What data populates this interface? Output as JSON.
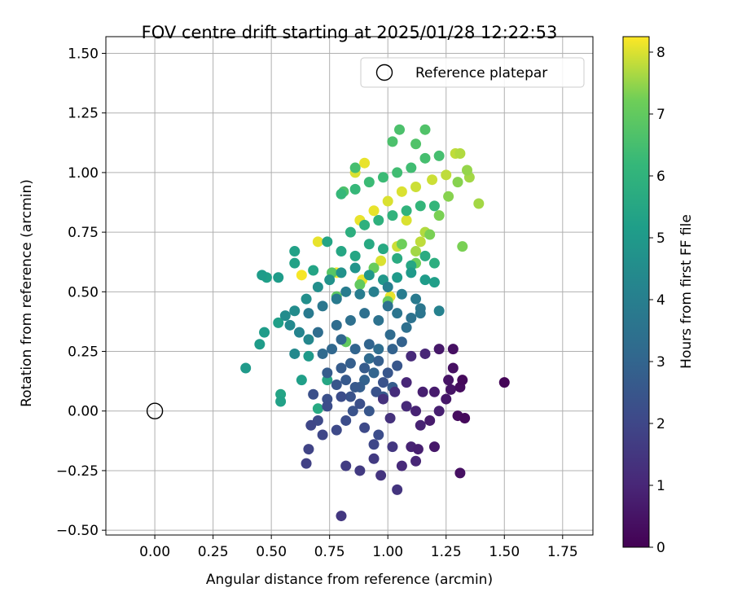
{
  "chart_data": {
    "type": "scatter",
    "title": "FOV centre drift starting at 2025/01/28 12:22:53",
    "xlabel": "Angular distance from reference (arcmin)",
    "ylabel": "Rotation from reference (arcmin)",
    "xlim": [
      -0.21,
      1.88
    ],
    "ylim": [
      -0.52,
      1.57
    ],
    "xticks": [
      0.0,
      0.25,
      0.5,
      0.75,
      1.0,
      1.25,
      1.5,
      1.75
    ],
    "xtick_labels": [
      "0.00",
      "0.25",
      "0.50",
      "0.75",
      "1.00",
      "1.25",
      "1.50",
      "1.75"
    ],
    "yticks": [
      -0.5,
      -0.25,
      0.0,
      0.25,
      0.5,
      0.75,
      1.0,
      1.25,
      1.5
    ],
    "ytick_labels": [
      "−0.50",
      "−0.25",
      "0.00",
      "0.25",
      "0.50",
      "0.75",
      "1.00",
      "1.25",
      "1.50"
    ],
    "grid": true,
    "legend": {
      "placement": "top-right",
      "entries": [
        {
          "label": "Reference platepar",
          "marker": "hollow-circle"
        }
      ]
    },
    "reference_point": {
      "x": 0.0,
      "y": 0.0
    },
    "colorbar": {
      "label": "Hours from first FF file",
      "colormap": "viridis",
      "range": [
        0,
        8.25
      ],
      "ticks": [
        0,
        1,
        2,
        3,
        4,
        5,
        6,
        7,
        8
      ],
      "tick_labels": [
        "0",
        "1",
        "2",
        "3",
        "4",
        "5",
        "6",
        "7",
        "8"
      ]
    },
    "points": [
      {
        "x": 1.5,
        "y": 0.12,
        "c": 0.1
      },
      {
        "x": 1.32,
        "y": 0.13,
        "c": 0.2
      },
      {
        "x": 1.31,
        "y": 0.1,
        "c": 0.3
      },
      {
        "x": 1.33,
        "y": -0.03,
        "c": 0.2
      },
      {
        "x": 1.3,
        "y": -0.02,
        "c": 0.3
      },
      {
        "x": 1.28,
        "y": 0.26,
        "c": 0.4
      },
      {
        "x": 1.28,
        "y": 0.18,
        "c": 0.4
      },
      {
        "x": 1.26,
        "y": 0.13,
        "c": 0.5
      },
      {
        "x": 1.27,
        "y": 0.09,
        "c": 0.5
      },
      {
        "x": 1.25,
        "y": 0.05,
        "c": 0.6
      },
      {
        "x": 1.31,
        "y": -0.26,
        "c": 0.4
      },
      {
        "x": 1.22,
        "y": 0.26,
        "c": 0.6
      },
      {
        "x": 1.2,
        "y": 0.08,
        "c": 0.7
      },
      {
        "x": 1.18,
        "y": -0.04,
        "c": 0.7
      },
      {
        "x": 1.15,
        "y": 0.08,
        "c": 0.8
      },
      {
        "x": 1.14,
        "y": -0.06,
        "c": 0.9
      },
      {
        "x": 1.12,
        "y": 0.0,
        "c": 0.9
      },
      {
        "x": 1.2,
        "y": -0.15,
        "c": 0.6
      },
      {
        "x": 1.13,
        "y": -0.16,
        "c": 0.8
      },
      {
        "x": 1.1,
        "y": -0.15,
        "c": 0.9
      },
      {
        "x": 1.08,
        "y": 0.12,
        "c": 1.0
      },
      {
        "x": 1.06,
        "y": -0.23,
        "c": 1.1
      },
      {
        "x": 1.12,
        "y": -0.21,
        "c": 1.0
      },
      {
        "x": 1.22,
        "y": 0.0,
        "c": 0.8
      },
      {
        "x": 1.08,
        "y": 0.02,
        "c": 1.1
      },
      {
        "x": 1.03,
        "y": 0.08,
        "c": 1.2
      },
      {
        "x": 1.01,
        "y": -0.03,
        "c": 1.3
      },
      {
        "x": 0.98,
        "y": 0.05,
        "c": 1.3
      },
      {
        "x": 0.97,
        "y": -0.27,
        "c": 1.4
      },
      {
        "x": 1.04,
        "y": -0.33,
        "c": 1.4
      },
      {
        "x": 1.16,
        "y": 0.24,
        "c": 1.0
      },
      {
        "x": 1.1,
        "y": 0.23,
        "c": 1.1
      },
      {
        "x": 1.02,
        "y": -0.15,
        "c": 1.5
      },
      {
        "x": 0.94,
        "y": -0.2,
        "c": 1.6
      },
      {
        "x": 0.88,
        "y": -0.25,
        "c": 1.6
      },
      {
        "x": 0.82,
        "y": -0.23,
        "c": 1.7
      },
      {
        "x": 0.8,
        "y": -0.44,
        "c": 1.5
      },
      {
        "x": 0.65,
        "y": -0.22,
        "c": 1.8
      },
      {
        "x": 0.66,
        "y": -0.16,
        "c": 1.9
      },
      {
        "x": 0.72,
        "y": -0.1,
        "c": 2.0
      },
      {
        "x": 0.67,
        "y": -0.06,
        "c": 2.0
      },
      {
        "x": 0.7,
        "y": -0.04,
        "c": 2.1
      },
      {
        "x": 0.78,
        "y": -0.08,
        "c": 2.1
      },
      {
        "x": 0.82,
        "y": -0.04,
        "c": 2.2
      },
      {
        "x": 0.9,
        "y": -0.07,
        "c": 2.1
      },
      {
        "x": 0.94,
        "y": -0.14,
        "c": 2.0
      },
      {
        "x": 0.96,
        "y": -0.1,
        "c": 2.2
      },
      {
        "x": 0.74,
        "y": 0.02,
        "c": 2.2
      },
      {
        "x": 0.68,
        "y": 0.07,
        "c": 2.3
      },
      {
        "x": 0.74,
        "y": 0.05,
        "c": 2.3
      },
      {
        "x": 0.8,
        "y": 0.06,
        "c": 2.2
      },
      {
        "x": 0.85,
        "y": 0.0,
        "c": 2.4
      },
      {
        "x": 0.88,
        "y": 0.03,
        "c": 2.3
      },
      {
        "x": 0.92,
        "y": 0.0,
        "c": 2.5
      },
      {
        "x": 0.95,
        "y": 0.08,
        "c": 2.4
      },
      {
        "x": 0.98,
        "y": 0.12,
        "c": 2.4
      },
      {
        "x": 1.0,
        "y": 0.16,
        "c": 2.5
      },
      {
        "x": 1.04,
        "y": 0.19,
        "c": 2.5
      },
      {
        "x": 0.86,
        "y": 0.1,
        "c": 2.6
      },
      {
        "x": 0.82,
        "y": 0.13,
        "c": 2.6
      },
      {
        "x": 0.78,
        "y": 0.11,
        "c": 2.5
      },
      {
        "x": 0.74,
        "y": 0.16,
        "c": 2.7
      },
      {
        "x": 0.8,
        "y": 0.18,
        "c": 2.7
      },
      {
        "x": 0.84,
        "y": 0.2,
        "c": 2.8
      },
      {
        "x": 0.9,
        "y": 0.18,
        "c": 2.7
      },
      {
        "x": 0.96,
        "y": 0.21,
        "c": 2.8
      },
      {
        "x": 1.02,
        "y": 0.26,
        "c": 2.9
      },
      {
        "x": 1.06,
        "y": 0.29,
        "c": 2.9
      },
      {
        "x": 0.92,
        "y": 0.28,
        "c": 3.0
      },
      {
        "x": 0.86,
        "y": 0.26,
        "c": 3.0
      },
      {
        "x": 0.8,
        "y": 0.3,
        "c": 3.1
      },
      {
        "x": 0.76,
        "y": 0.26,
        "c": 3.1
      },
      {
        "x": 0.72,
        "y": 0.24,
        "c": 3.2
      },
      {
        "x": 0.7,
        "y": 0.33,
        "c": 3.3
      },
      {
        "x": 0.78,
        "y": 0.36,
        "c": 3.3
      },
      {
        "x": 0.84,
        "y": 0.38,
        "c": 3.4
      },
      {
        "x": 0.9,
        "y": 0.41,
        "c": 3.4
      },
      {
        "x": 0.96,
        "y": 0.38,
        "c": 3.5
      },
      {
        "x": 1.0,
        "y": 0.44,
        "c": 3.5
      },
      {
        "x": 1.04,
        "y": 0.41,
        "c": 3.6
      },
      {
        "x": 1.1,
        "y": 0.39,
        "c": 3.5
      },
      {
        "x": 1.14,
        "y": 0.41,
        "c": 3.6
      },
      {
        "x": 1.08,
        "y": 0.35,
        "c": 3.4
      },
      {
        "x": 1.01,
        "y": 0.32,
        "c": 3.2
      },
      {
        "x": 0.66,
        "y": 0.41,
        "c": 3.8
      },
      {
        "x": 0.72,
        "y": 0.44,
        "c": 3.7
      },
      {
        "x": 0.78,
        "y": 0.47,
        "c": 3.8
      },
      {
        "x": 0.82,
        "y": 0.5,
        "c": 3.9
      },
      {
        "x": 0.88,
        "y": 0.49,
        "c": 3.9
      },
      {
        "x": 0.94,
        "y": 0.5,
        "c": 4.0
      },
      {
        "x": 1.0,
        "y": 0.52,
        "c": 4.0
      },
      {
        "x": 1.06,
        "y": 0.49,
        "c": 3.9
      },
      {
        "x": 1.12,
        "y": 0.47,
        "c": 3.8
      },
      {
        "x": 1.14,
        "y": 0.43,
        "c": 3.7
      },
      {
        "x": 1.22,
        "y": 0.42,
        "c": 4.1
      },
      {
        "x": 0.62,
        "y": 0.33,
        "c": 4.2
      },
      {
        "x": 0.66,
        "y": 0.3,
        "c": 4.3
      },
      {
        "x": 0.6,
        "y": 0.24,
        "c": 4.4
      },
      {
        "x": 0.58,
        "y": 0.36,
        "c": 4.4
      },
      {
        "x": 0.56,
        "y": 0.4,
        "c": 4.5
      },
      {
        "x": 0.6,
        "y": 0.42,
        "c": 4.5
      },
      {
        "x": 0.65,
        "y": 0.47,
        "c": 4.6
      },
      {
        "x": 0.7,
        "y": 0.52,
        "c": 4.6
      },
      {
        "x": 0.75,
        "y": 0.55,
        "c": 4.7
      },
      {
        "x": 0.8,
        "y": 0.58,
        "c": 4.7
      },
      {
        "x": 0.86,
        "y": 0.6,
        "c": 4.8
      },
      {
        "x": 0.92,
        "y": 0.57,
        "c": 4.9
      },
      {
        "x": 0.98,
        "y": 0.55,
        "c": 4.9
      },
      {
        "x": 1.04,
        "y": 0.56,
        "c": 5.0
      },
      {
        "x": 1.1,
        "y": 0.58,
        "c": 5.0
      },
      {
        "x": 1.16,
        "y": 0.55,
        "c": 5.1
      },
      {
        "x": 1.2,
        "y": 0.54,
        "c": 5.2
      },
      {
        "x": 0.46,
        "y": 0.57,
        "c": 5.1
      },
      {
        "x": 0.48,
        "y": 0.56,
        "c": 5.2
      },
      {
        "x": 0.53,
        "y": 0.56,
        "c": 5.1
      },
      {
        "x": 0.6,
        "y": 0.62,
        "c": 5.3
      },
      {
        "x": 0.6,
        "y": 0.67,
        "c": 5.3
      },
      {
        "x": 0.68,
        "y": 0.59,
        "c": 5.4
      },
      {
        "x": 0.74,
        "y": 0.71,
        "c": 5.4
      },
      {
        "x": 0.8,
        "y": 0.67,
        "c": 5.5
      },
      {
        "x": 0.86,
        "y": 0.65,
        "c": 5.5
      },
      {
        "x": 0.92,
        "y": 0.7,
        "c": 5.6
      },
      {
        "x": 0.98,
        "y": 0.68,
        "c": 5.6
      },
      {
        "x": 1.04,
        "y": 0.64,
        "c": 5.7
      },
      {
        "x": 1.1,
        "y": 0.61,
        "c": 5.5
      },
      {
        "x": 1.16,
        "y": 0.65,
        "c": 5.7
      },
      {
        "x": 1.2,
        "y": 0.62,
        "c": 5.8
      },
      {
        "x": 0.39,
        "y": 0.18,
        "c": 5.0
      },
      {
        "x": 0.45,
        "y": 0.28,
        "c": 5.1
      },
      {
        "x": 0.47,
        "y": 0.33,
        "c": 5.1
      },
      {
        "x": 0.53,
        "y": 0.37,
        "c": 5.2
      },
      {
        "x": 0.54,
        "y": 0.07,
        "c": 5.4
      },
      {
        "x": 0.54,
        "y": 0.04,
        "c": 5.3
      },
      {
        "x": 0.63,
        "y": 0.13,
        "c": 5.2
      },
      {
        "x": 0.66,
        "y": 0.23,
        "c": 5.0
      },
      {
        "x": 0.7,
        "y": 0.01,
        "c": 5.6
      },
      {
        "x": 0.74,
        "y": 0.13,
        "c": 5.5
      },
      {
        "x": 0.84,
        "y": 0.75,
        "c": 5.8
      },
      {
        "x": 0.9,
        "y": 0.78,
        "c": 5.9
      },
      {
        "x": 0.96,
        "y": 0.8,
        "c": 5.9
      },
      {
        "x": 1.02,
        "y": 0.82,
        "c": 6.0
      },
      {
        "x": 1.08,
        "y": 0.84,
        "c": 6.0
      },
      {
        "x": 1.14,
        "y": 0.86,
        "c": 6.1
      },
      {
        "x": 1.2,
        "y": 0.86,
        "c": 6.1
      },
      {
        "x": 0.8,
        "y": 0.91,
        "c": 6.2
      },
      {
        "x": 0.86,
        "y": 0.93,
        "c": 6.2
      },
      {
        "x": 0.92,
        "y": 0.96,
        "c": 6.3
      },
      {
        "x": 0.98,
        "y": 0.98,
        "c": 6.3
      },
      {
        "x": 1.04,
        "y": 1.0,
        "c": 6.4
      },
      {
        "x": 1.1,
        "y": 1.02,
        "c": 6.4
      },
      {
        "x": 1.16,
        "y": 1.06,
        "c": 6.5
      },
      {
        "x": 1.22,
        "y": 1.07,
        "c": 6.5
      },
      {
        "x": 1.05,
        "y": 1.18,
        "c": 6.6
      },
      {
        "x": 1.02,
        "y": 1.13,
        "c": 6.6
      },
      {
        "x": 1.12,
        "y": 1.12,
        "c": 6.7
      },
      {
        "x": 1.16,
        "y": 1.18,
        "c": 6.7
      },
      {
        "x": 0.86,
        "y": 1.02,
        "c": 6.5
      },
      {
        "x": 0.81,
        "y": 0.92,
        "c": 6.6
      },
      {
        "x": 0.76,
        "y": 0.58,
        "c": 6.8
      },
      {
        "x": 0.78,
        "y": 0.48,
        "c": 6.9
      },
      {
        "x": 0.82,
        "y": 0.29,
        "c": 7.0
      },
      {
        "x": 0.88,
        "y": 0.53,
        "c": 7.0
      },
      {
        "x": 0.94,
        "y": 0.6,
        "c": 7.1
      },
      {
        "x": 1.0,
        "y": 0.46,
        "c": 7.1
      },
      {
        "x": 1.06,
        "y": 0.7,
        "c": 7.2
      },
      {
        "x": 1.12,
        "y": 0.62,
        "c": 7.2
      },
      {
        "x": 1.18,
        "y": 0.74,
        "c": 7.3
      },
      {
        "x": 1.22,
        "y": 0.82,
        "c": 7.3
      },
      {
        "x": 1.26,
        "y": 0.9,
        "c": 7.4
      },
      {
        "x": 1.3,
        "y": 0.96,
        "c": 7.4
      },
      {
        "x": 1.32,
        "y": 0.69,
        "c": 7.3
      },
      {
        "x": 1.34,
        "y": 1.01,
        "c": 7.5
      },
      {
        "x": 1.35,
        "y": 0.98,
        "c": 7.6
      },
      {
        "x": 1.39,
        "y": 0.87,
        "c": 7.6
      },
      {
        "x": 1.31,
        "y": 1.08,
        "c": 7.7
      },
      {
        "x": 1.29,
        "y": 1.08,
        "c": 7.8
      },
      {
        "x": 1.25,
        "y": 0.99,
        "c": 7.8
      },
      {
        "x": 1.19,
        "y": 0.97,
        "c": 7.9
      },
      {
        "x": 1.12,
        "y": 0.94,
        "c": 7.9
      },
      {
        "x": 1.06,
        "y": 0.92,
        "c": 8.0
      },
      {
        "x": 1.0,
        "y": 0.88,
        "c": 8.0
      },
      {
        "x": 0.94,
        "y": 0.84,
        "c": 8.1
      },
      {
        "x": 0.88,
        "y": 0.8,
        "c": 8.1
      },
      {
        "x": 0.86,
        "y": 1.0,
        "c": 8.0
      },
      {
        "x": 0.9,
        "y": 1.04,
        "c": 8.1
      },
      {
        "x": 0.7,
        "y": 0.71,
        "c": 8.1
      },
      {
        "x": 0.63,
        "y": 0.57,
        "c": 8.2
      },
      {
        "x": 0.78,
        "y": 0.58,
        "c": 8.2
      },
      {
        "x": 0.89,
        "y": 0.55,
        "c": 8.1
      },
      {
        "x": 0.97,
        "y": 0.63,
        "c": 8.0
      },
      {
        "x": 1.01,
        "y": 0.48,
        "c": 8.1
      },
      {
        "x": 1.04,
        "y": 0.69,
        "c": 7.9
      },
      {
        "x": 1.08,
        "y": 0.8,
        "c": 8.0
      },
      {
        "x": 1.14,
        "y": 0.71,
        "c": 7.8
      },
      {
        "x": 1.16,
        "y": 0.75,
        "c": 7.7
      },
      {
        "x": 1.12,
        "y": 0.67,
        "c": 7.6
      },
      {
        "x": 0.9,
        "y": 0.13,
        "c": 2.9
      },
      {
        "x": 0.94,
        "y": 0.16,
        "c": 3.0
      },
      {
        "x": 0.98,
        "y": 0.06,
        "c": 2.6
      },
      {
        "x": 1.02,
        "y": 0.1,
        "c": 2.7
      },
      {
        "x": 0.84,
        "y": 0.06,
        "c": 2.4
      },
      {
        "x": 0.88,
        "y": 0.1,
        "c": 2.8
      },
      {
        "x": 0.92,
        "y": 0.22,
        "c": 3.2
      },
      {
        "x": 0.96,
        "y": 0.26,
        "c": 3.3
      }
    ]
  }
}
